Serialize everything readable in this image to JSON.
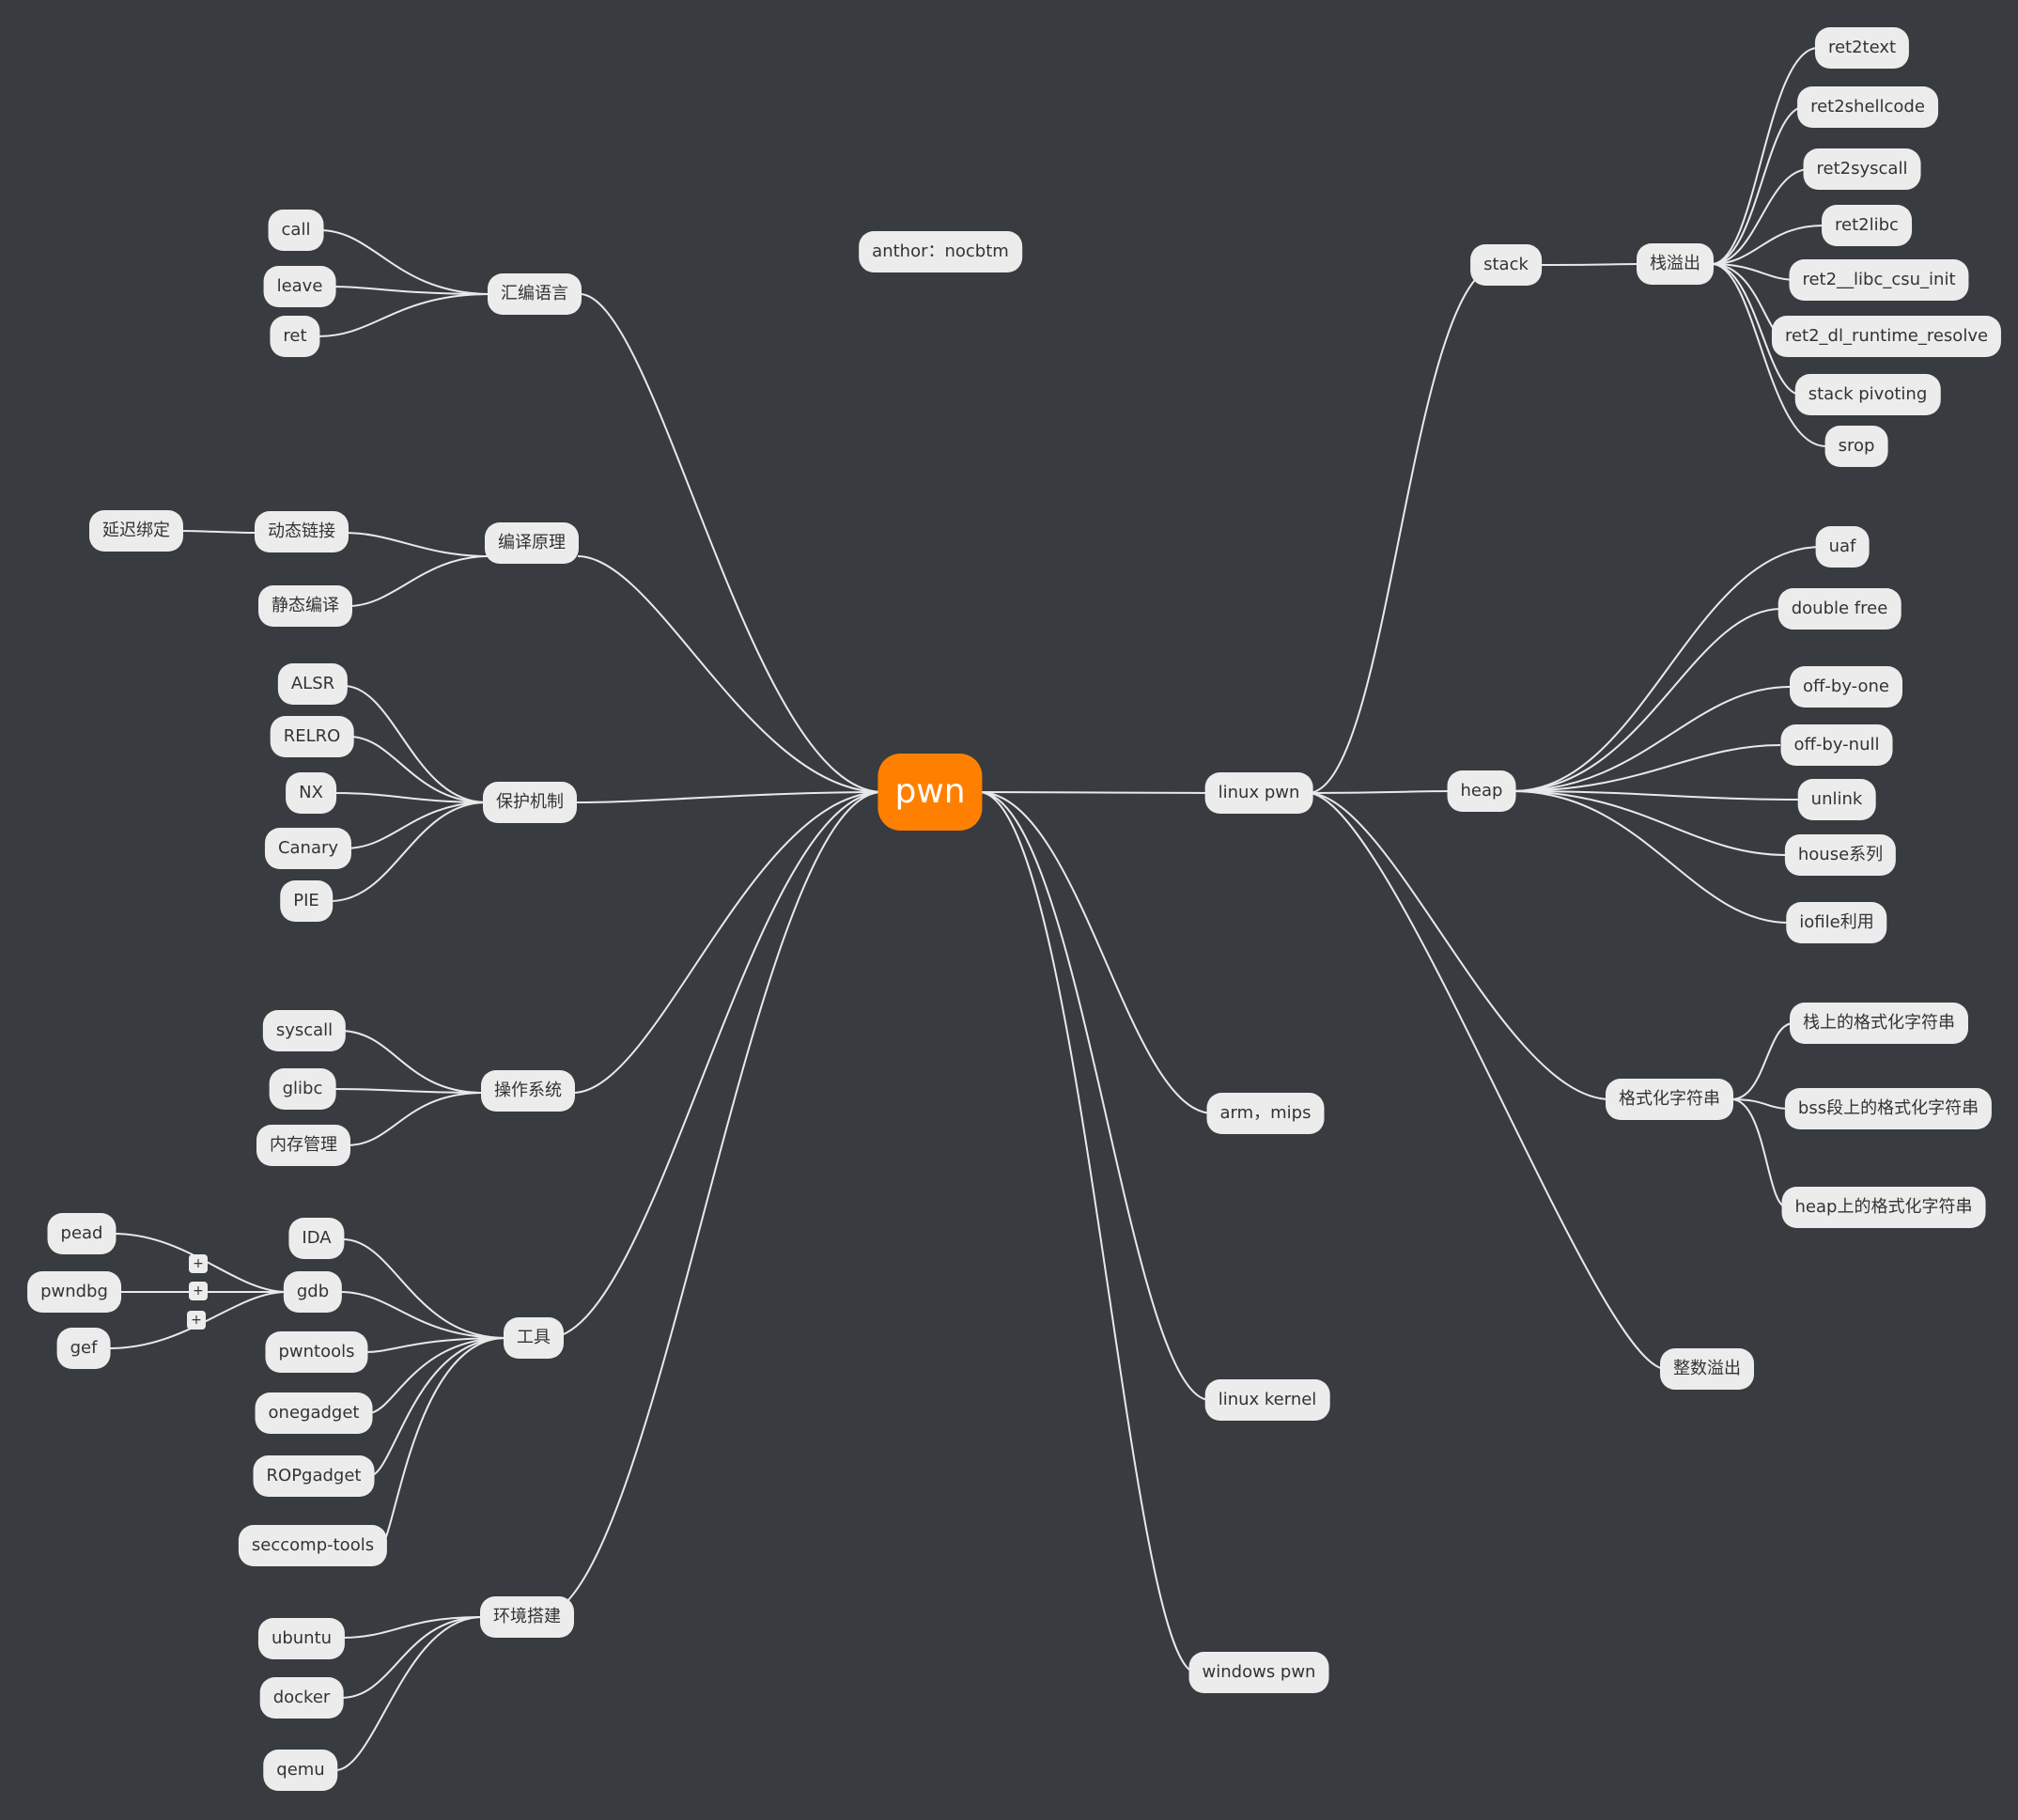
{
  "colors": {
    "background": "#383b40",
    "node": "#ececec",
    "root": "#ff8000",
    "line": "#e9e9e9"
  },
  "root": "pwn",
  "author": "anthor：nocbtm",
  "nodes": {
    "asm": "汇编语言",
    "call": "call",
    "leave": "leave",
    "ret": "ret",
    "compile": "编译原理",
    "dynlink": "动态链接",
    "lazybind": "延迟绑定",
    "staticcompile": "静态编译",
    "protect": "保护机制",
    "alsr": "ALSR",
    "relro": "RELRO",
    "nx": "NX",
    "canary": "Canary",
    "pie": "PIE",
    "os": "操作系统",
    "syscall": "syscall",
    "glibc": "glibc",
    "memmgmt": "内存管理",
    "tools": "工具",
    "ida": "IDA",
    "gdb": "gdb",
    "pead": "pead",
    "pwndbg": "pwndbg",
    "gef": "gef",
    "pwntools": "pwntools",
    "onegadget": "onegadget",
    "ropgadget": "ROPgadget",
    "seccomp": "seccomp-tools",
    "env": "环境搭建",
    "ubuntu": "ubuntu",
    "docker": "docker",
    "qemu": "qemu",
    "linuxpwn": "linux pwn",
    "stack": "stack",
    "stackoverflow": "栈溢出",
    "ret2text": "ret2text",
    "ret2shellcode": "ret2shellcode",
    "ret2syscall": "ret2syscall",
    "ret2libc": "ret2libc",
    "ret2csu": "ret2__libc_csu_init",
    "ret2dl": "ret2_dl_runtime_resolve",
    "pivot": "stack pivoting",
    "srop": "srop",
    "heap": "heap",
    "uaf": "uaf",
    "doublefree": "double free",
    "offbyone": "off-by-one",
    "offbynull": "off-by-null",
    "unlink": "unlink",
    "house": "house系列",
    "iofile": "iofile利用",
    "fmt": "格式化字符串",
    "fmtstack": "栈上的格式化字符串",
    "fmtbss": "bss段上的格式化字符串",
    "fmtheap": "heap上的格式化字符串",
    "intoverflow": "整数溢出",
    "arm": "arm，mips",
    "kernel": "linux kernel",
    "windows": "windows pwn"
  },
  "toggles": [
    "+",
    "+",
    "+"
  ]
}
